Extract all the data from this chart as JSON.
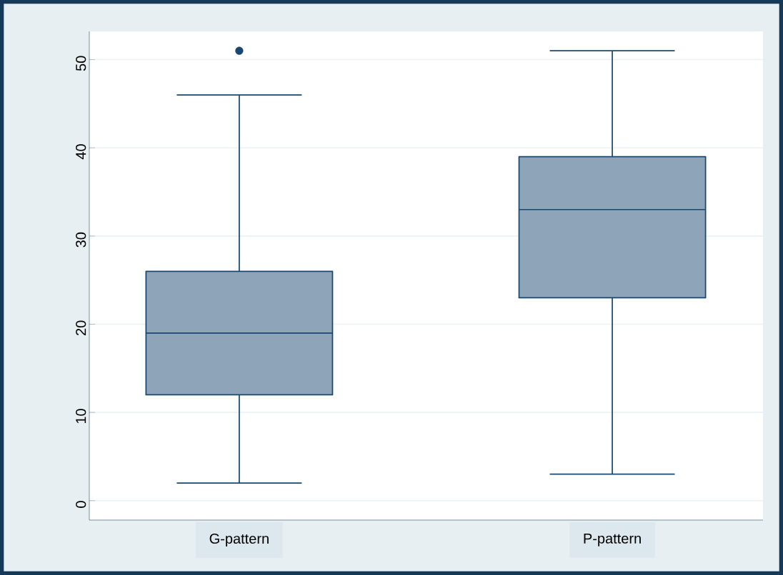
{
  "chart_data": {
    "type": "box",
    "categories": [
      "G-pattern",
      "P-pattern"
    ],
    "boxes": [
      {
        "low": 2,
        "q1": 12,
        "median": 19,
        "q3": 26,
        "high": 46,
        "outliers": [
          51
        ]
      },
      {
        "low": 3,
        "q1": 23,
        "median": 33,
        "q3": 39,
        "high": 51
      }
    ],
    "color": "#8ea5b9",
    "ylim": [
      -2.2,
      53.2
    ],
    "yticks": [
      0,
      10,
      20,
      30,
      40,
      50
    ],
    "grid": "y"
  }
}
